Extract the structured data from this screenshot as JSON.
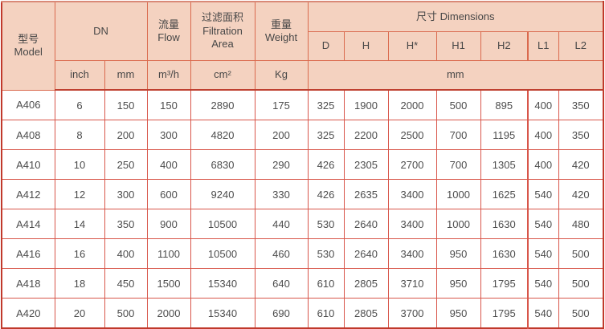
{
  "table": {
    "header": {
      "model_zh": "型号",
      "model_en": "Model",
      "dn": "DN",
      "flow_zh": "流量",
      "flow_en": "Flow",
      "filtration_zh": "过滤面积",
      "filtration_en": "Filtration Area",
      "weight_zh": "重量",
      "weight_en": "Weight",
      "dimensions": "尺寸 Dimensions",
      "dim_cols": [
        "D",
        "H",
        "H*",
        "H1",
        "H2",
        "L1",
        "L2"
      ],
      "units": {
        "inch": "inch",
        "mm": "mm",
        "flow": "m³/h",
        "area": "cm²",
        "weight": "Kg",
        "dims_unit": "mm"
      }
    },
    "rows": [
      {
        "model": "A406",
        "inch": "6",
        "mm": "150",
        "flow": "150",
        "area": "2890",
        "weight": "175",
        "dims": [
          "325",
          "1900",
          "2000",
          "500",
          "895",
          "400",
          "350"
        ]
      },
      {
        "model": "A408",
        "inch": "8",
        "mm": "200",
        "flow": "300",
        "area": "4820",
        "weight": "200",
        "dims": [
          "325",
          "2200",
          "2500",
          "700",
          "1195",
          "400",
          "350"
        ]
      },
      {
        "model": "A410",
        "inch": "10",
        "mm": "250",
        "flow": "400",
        "area": "6830",
        "weight": "290",
        "dims": [
          "426",
          "2305",
          "2700",
          "700",
          "1305",
          "400",
          "420"
        ]
      },
      {
        "model": "A412",
        "inch": "12",
        "mm": "300",
        "flow": "600",
        "area": "9240",
        "weight": "330",
        "dims": [
          "426",
          "2635",
          "3400",
          "1000",
          "1625",
          "540",
          "420"
        ]
      },
      {
        "model": "A414",
        "inch": "14",
        "mm": "350",
        "flow": "900",
        "area": "10500",
        "weight": "440",
        "dims": [
          "530",
          "2640",
          "3400",
          "1000",
          "1630",
          "540",
          "480"
        ]
      },
      {
        "model": "A416",
        "inch": "16",
        "mm": "400",
        "flow": "1100",
        "area": "10500",
        "weight": "460",
        "dims": [
          "530",
          "2640",
          "3400",
          "950",
          "1630",
          "540",
          "500"
        ]
      },
      {
        "model": "A418",
        "inch": "18",
        "mm": "450",
        "flow": "1500",
        "area": "15340",
        "weight": "640",
        "dims": [
          "610",
          "2805",
          "3710",
          "950",
          "1795",
          "540",
          "500"
        ]
      },
      {
        "model": "A420",
        "inch": "20",
        "mm": "500",
        "flow": "2000",
        "area": "15340",
        "weight": "690",
        "dims": [
          "610",
          "2805",
          "3700",
          "950",
          "1795",
          "540",
          "500"
        ]
      }
    ]
  },
  "colors": {
    "header_bg": "#f4d2c0",
    "header_grid": "#da6a4e",
    "body_grid": "#d8564a",
    "outer_border": "#c0392b",
    "text": "#4d4d4d"
  }
}
